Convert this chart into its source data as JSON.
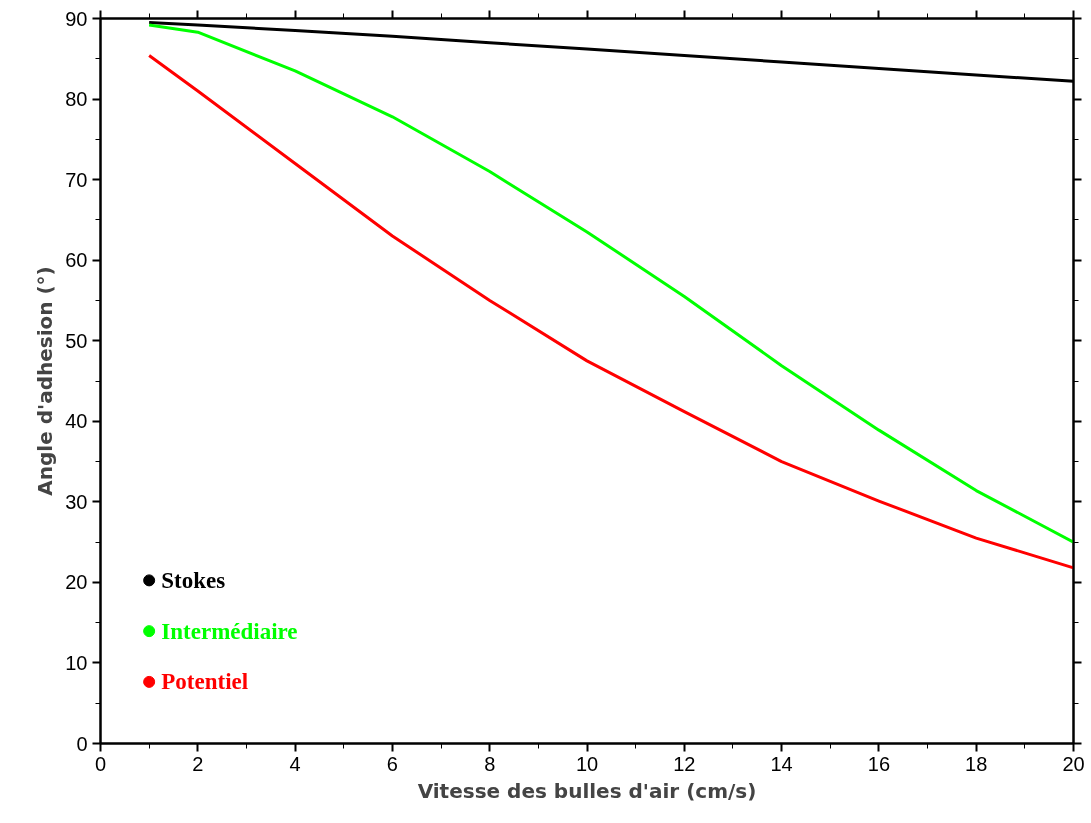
{
  "chart_data": {
    "type": "line",
    "xlabel": "Vitesse des bulles d'air (cm/s)",
    "ylabel": "Angle d'adhesion (°)",
    "x": [
      1,
      2,
      4,
      6,
      8,
      10,
      12,
      14,
      16,
      18,
      20
    ],
    "series": [
      {
        "name": "Stokes",
        "color": "#000000",
        "values": [
          89.5,
          89.2,
          88.5,
          87.8,
          87.0,
          86.2,
          85.4,
          84.6,
          83.8,
          83.0,
          82.2
        ]
      },
      {
        "name": "Intermédiaire",
        "color": "#00ff00",
        "values": [
          89.2,
          88.3,
          83.5,
          77.8,
          71.0,
          63.5,
          55.5,
          46.9,
          38.9,
          31.4,
          25.0
        ]
      },
      {
        "name": "Potentiel",
        "color": "#ff0000",
        "values": [
          85.4,
          81.0,
          72.0,
          63.0,
          55.0,
          47.5,
          41.2,
          35.0,
          30.1,
          25.5,
          21.8
        ]
      }
    ],
    "xlim": [
      0,
      20
    ],
    "ylim": [
      0,
      90
    ],
    "xticks": [
      0,
      2,
      4,
      6,
      8,
      10,
      12,
      14,
      16,
      18,
      20
    ],
    "yticks": [
      0,
      10,
      20,
      30,
      40,
      50,
      60,
      70,
      80,
      90
    ],
    "grid": false,
    "legend": "bottom left",
    "marker": "none",
    "line_style": "solid"
  }
}
